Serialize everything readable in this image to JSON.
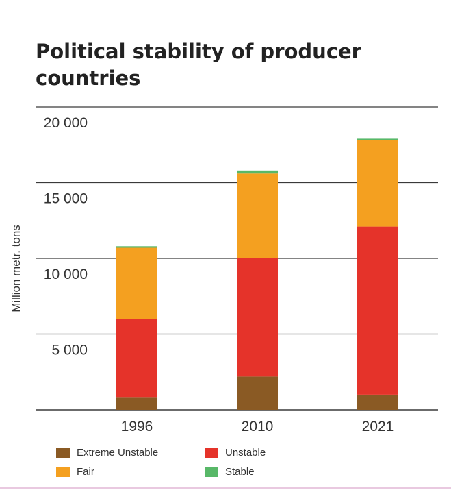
{
  "chart_data": {
    "type": "bar",
    "stacked": true,
    "title": "Political stability of producer countries",
    "ylabel": "Million metr. tons",
    "xlabel": "",
    "categories": [
      "1996",
      "2010",
      "2021"
    ],
    "ylim": [
      0,
      20000
    ],
    "yticks": [
      {
        "value": 5000,
        "label": "5 000"
      },
      {
        "value": 10000,
        "label": "10 000"
      },
      {
        "value": 15000,
        "label": "15 000"
      },
      {
        "value": 20000,
        "label": "20 000"
      }
    ],
    "grid": true,
    "legend_position": "bottom",
    "series": [
      {
        "name": "Extreme Unstable",
        "color": "#8a5a24",
        "values": [
          800,
          2200,
          1000
        ]
      },
      {
        "name": "Unstable",
        "color": "#e5332a",
        "values": [
          5200,
          7800,
          11100
        ]
      },
      {
        "name": "Fair",
        "color": "#f4a020",
        "values": [
          4700,
          5600,
          5700
        ]
      },
      {
        "name": "Stable",
        "color": "#58b868",
        "values": [
          100,
          200,
          100
        ]
      }
    ]
  }
}
